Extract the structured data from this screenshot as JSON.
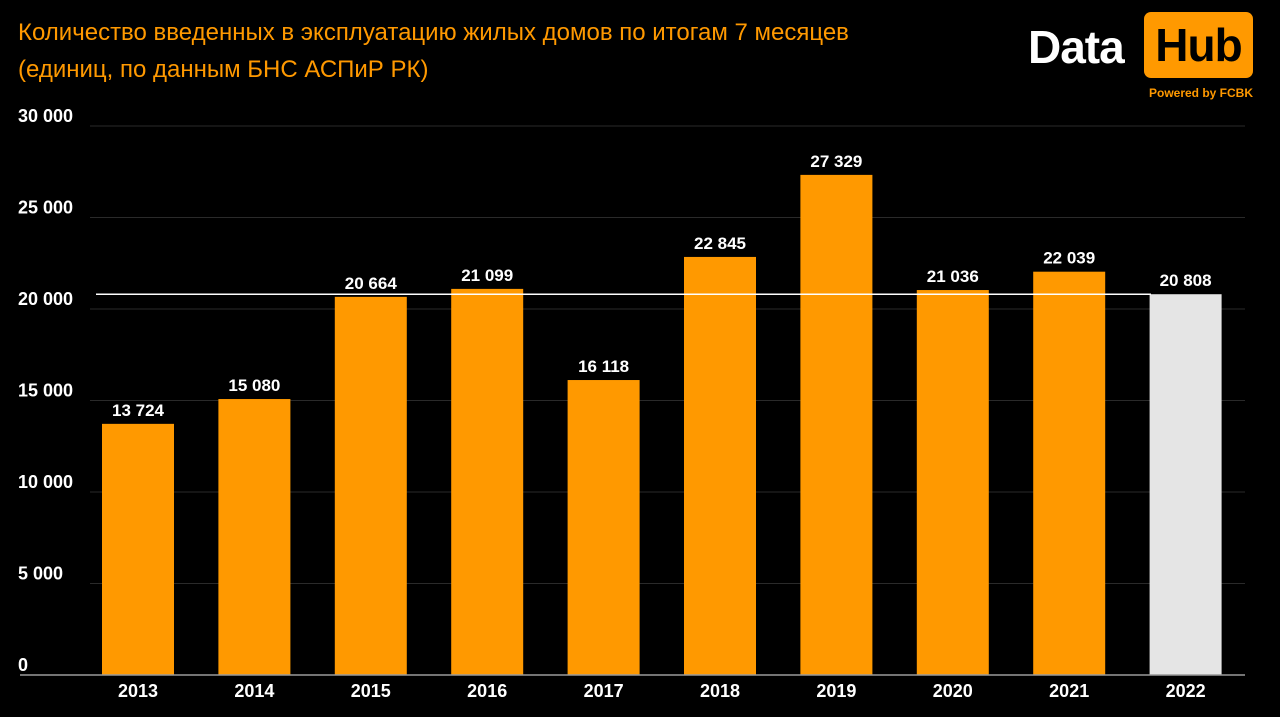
{
  "title": {
    "line1": "Количество введенных в эксплуатацию жилых домов по итогам 7 месяцев",
    "line2": "(единиц, по данным БНС АСПиР РК)"
  },
  "logo": {
    "data": "Data",
    "hub": "Hub",
    "powered": "Powered by FCBK"
  },
  "colors": {
    "background": "#000000",
    "accent": "#ff9900",
    "highlight": "#e5e5e5",
    "text": "#ffffff",
    "grid": "#2a2a2a"
  },
  "chart_data": {
    "type": "bar",
    "categories": [
      "2013",
      "2014",
      "2015",
      "2016",
      "2017",
      "2018",
      "2019",
      "2020",
      "2021",
      "2022"
    ],
    "values": [
      13724,
      15080,
      20664,
      21099,
      16118,
      22845,
      27329,
      21036,
      22039,
      20808
    ],
    "value_labels": [
      "13 724",
      "15 080",
      "20 664",
      "21 099",
      "16 118",
      "22 845",
      "27 329",
      "21 036",
      "22 039",
      "20 808"
    ],
    "highlighted_category": "2022",
    "reference_line": 20808,
    "ylim": [
      0,
      30000
    ],
    "yticks": [
      0,
      5000,
      10000,
      15000,
      20000,
      25000,
      30000
    ],
    "ytick_labels": [
      "0",
      "5 000",
      "10 000",
      "15 000",
      "20 000",
      "25 000",
      "30 000"
    ],
    "grid": true,
    "legend": false,
    "title": "Количество введенных в эксплуатацию жилых домов по итогам 7 месяцев"
  }
}
